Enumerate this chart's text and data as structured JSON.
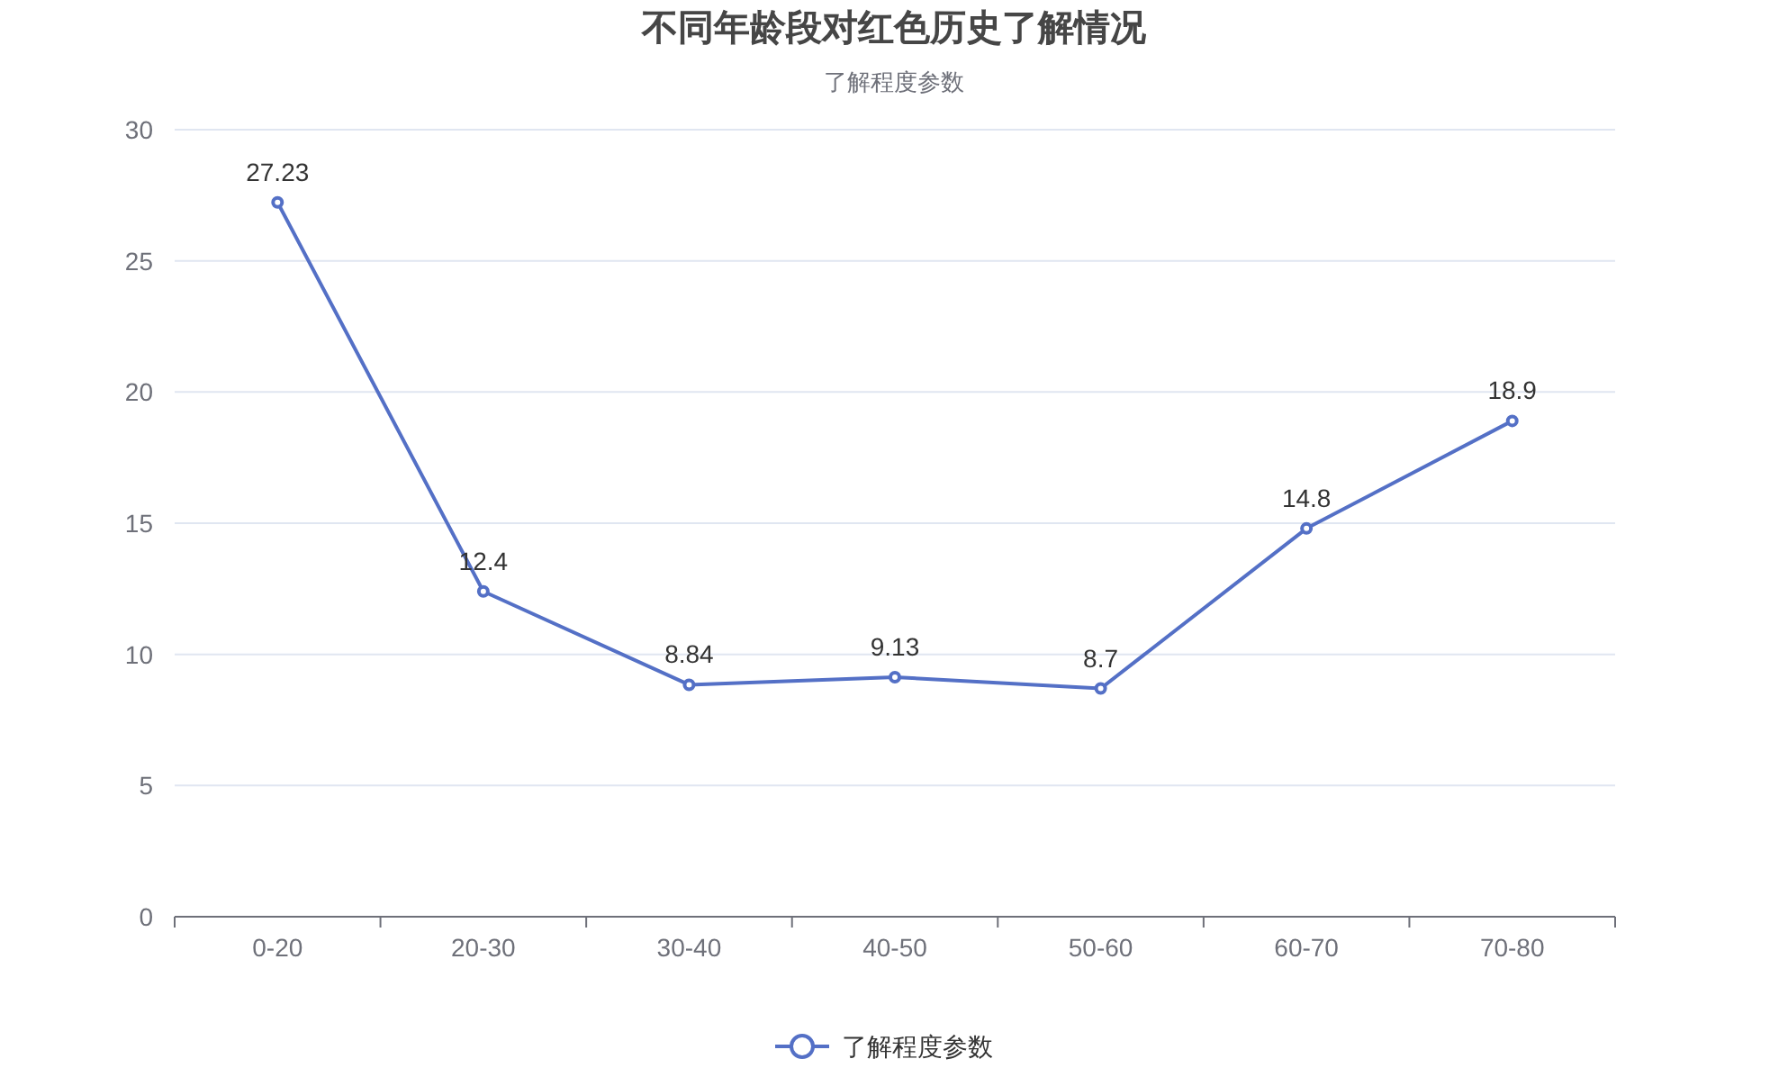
{
  "chart_data": {
    "type": "line",
    "title": "不同年龄段对红色历史了解情况",
    "subtitle": "了解程度参数",
    "categories": [
      "0-20",
      "20-30",
      "30-40",
      "40-50",
      "50-60",
      "60-70",
      "70-80"
    ],
    "series": [
      {
        "name": "了解程度参数",
        "color": "#5470c6",
        "values": [
          27.23,
          12.4,
          8.84,
          9.13,
          8.7,
          14.8,
          18.9
        ]
      }
    ],
    "ylim": [
      0,
      30
    ],
    "yticks": [
      0,
      5,
      10,
      15,
      20,
      25,
      30
    ],
    "grid": "y",
    "legend": "bottom",
    "marker": "circle",
    "line_style": "solid",
    "data_labels": true
  }
}
